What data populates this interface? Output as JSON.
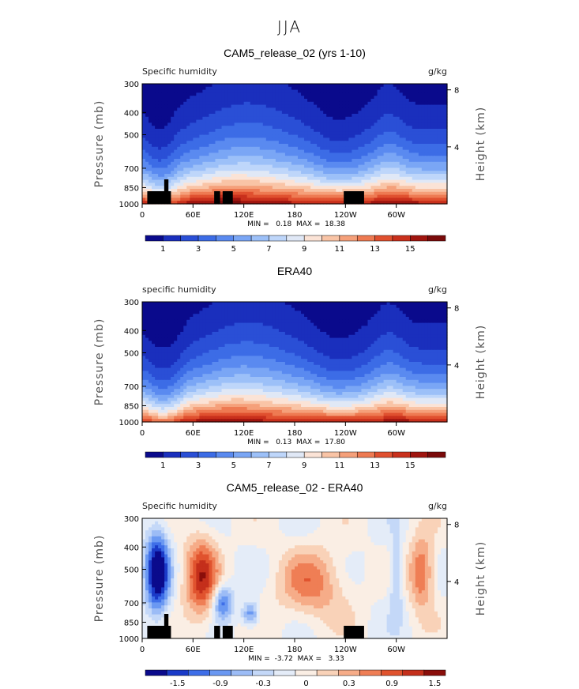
{
  "page_title": "JJA",
  "colors": {
    "full_field_scale": [
      "#0a0a8c",
      "#1a2fbd",
      "#2a4fd6",
      "#3c6ce6",
      "#5a8af0",
      "#7aa6f5",
      "#9cc0f8",
      "#bed6fa",
      "#e0e8f6",
      "#fbe3d6",
      "#f9c4a6",
      "#f5a07a",
      "#ee7a52",
      "#e0502f",
      "#c9301c",
      "#a0150f",
      "#7a0a0a"
    ],
    "diff_scale": [
      "#0a0a8c",
      "#1a3ac8",
      "#3e6ee8",
      "#6a98f2",
      "#9cbcf6",
      "#c4d8f8",
      "#e4ecf8",
      "#faeee4",
      "#f9d2b8",
      "#f6ac88",
      "#ef7e55",
      "#e0532e",
      "#c42f1b",
      "#8a0e0a"
    ]
  },
  "panels": [
    {
      "title": "CAM5_release_02 (yrs 1-10)",
      "left_label": "Specific humidity",
      "right_label": "g/kg",
      "y_axis_label": "Pressure (mb)",
      "y2_axis_label": "Height (km)",
      "min_max_text": "MIN =   0.18  MAX =  18.38",
      "colorbar_ticks": [
        "1",
        "3",
        "5",
        "7",
        "9",
        "11",
        "13",
        "15"
      ]
    },
    {
      "title": "ERA40",
      "left_label": "specific humidity",
      "right_label": "g/kg",
      "y_axis_label": "Pressure (mb)",
      "y2_axis_label": "Height (km)",
      "min_max_text": "MIN =   0.13  MAX =  17.80",
      "colorbar_ticks": [
        "1",
        "3",
        "5",
        "7",
        "9",
        "11",
        "13",
        "15"
      ]
    },
    {
      "title": "CAM5_release_02 - ERA40",
      "left_label": "Specific humidity",
      "right_label": "g/kg",
      "y_axis_label": "Pressure (mb)",
      "y2_axis_label": "Height (km)",
      "min_max_text": "MIN =  -3.72  MAX =   3.33",
      "colorbar_ticks": [
        "-1.5",
        "-0.9",
        "-0.3",
        "0",
        "0.3",
        "0.9",
        "1.5"
      ]
    }
  ],
  "chart_data": [
    {
      "type": "heatmap",
      "title": "CAM5_release_02 (yrs 1-10)",
      "variable": "Specific humidity",
      "units": "g/kg",
      "x_ticks": [
        "0",
        "60E",
        "120E",
        "180",
        "120W",
        "60W"
      ],
      "x_range_lon": [
        0,
        360
      ],
      "y_ticks_pressure_mb": [
        300,
        400,
        500,
        700,
        850,
        1000
      ],
      "y2_ticks_height_km": [
        8,
        4
      ],
      "ylabel": "Pressure (mb)",
      "y2label": "Height (km)",
      "min": 0.18,
      "max": 18.38,
      "contour_levels": [
        0,
        1,
        2,
        3,
        4,
        5,
        6,
        7,
        8,
        9,
        10,
        11,
        12,
        13,
        14,
        15,
        16
      ]
    },
    {
      "type": "heatmap",
      "title": "ERA40",
      "variable": "specific humidity",
      "units": "g/kg",
      "x_ticks": [
        "0",
        "60E",
        "120E",
        "180",
        "120W",
        "60W"
      ],
      "x_range_lon": [
        0,
        360
      ],
      "y_ticks_pressure_mb": [
        300,
        400,
        500,
        700,
        850,
        1000
      ],
      "y2_ticks_height_km": [
        8,
        4
      ],
      "ylabel": "Pressure (mb)",
      "y2label": "Height (km)",
      "min": 0.13,
      "max": 17.8,
      "contour_levels": [
        0,
        1,
        2,
        3,
        4,
        5,
        6,
        7,
        8,
        9,
        10,
        11,
        12,
        13,
        14,
        15,
        16
      ]
    },
    {
      "type": "heatmap",
      "title": "CAM5_release_02 - ERA40",
      "variable": "Specific humidity",
      "units": "g/kg",
      "x_ticks": [
        "0",
        "60E",
        "120E",
        "180",
        "120W",
        "60W"
      ],
      "x_range_lon": [
        0,
        360
      ],
      "y_ticks_pressure_mb": [
        300,
        400,
        500,
        700,
        850,
        1000
      ],
      "y2_ticks_height_km": [
        8,
        4
      ],
      "ylabel": "Pressure (mb)",
      "y2label": "Height (km)",
      "min": -3.72,
      "max": 3.33,
      "contour_levels": [
        -1.8,
        -1.5,
        -1.2,
        -0.9,
        -0.6,
        -0.3,
        0,
        0.3,
        0.6,
        0.9,
        1.2,
        1.5,
        1.8
      ]
    }
  ]
}
